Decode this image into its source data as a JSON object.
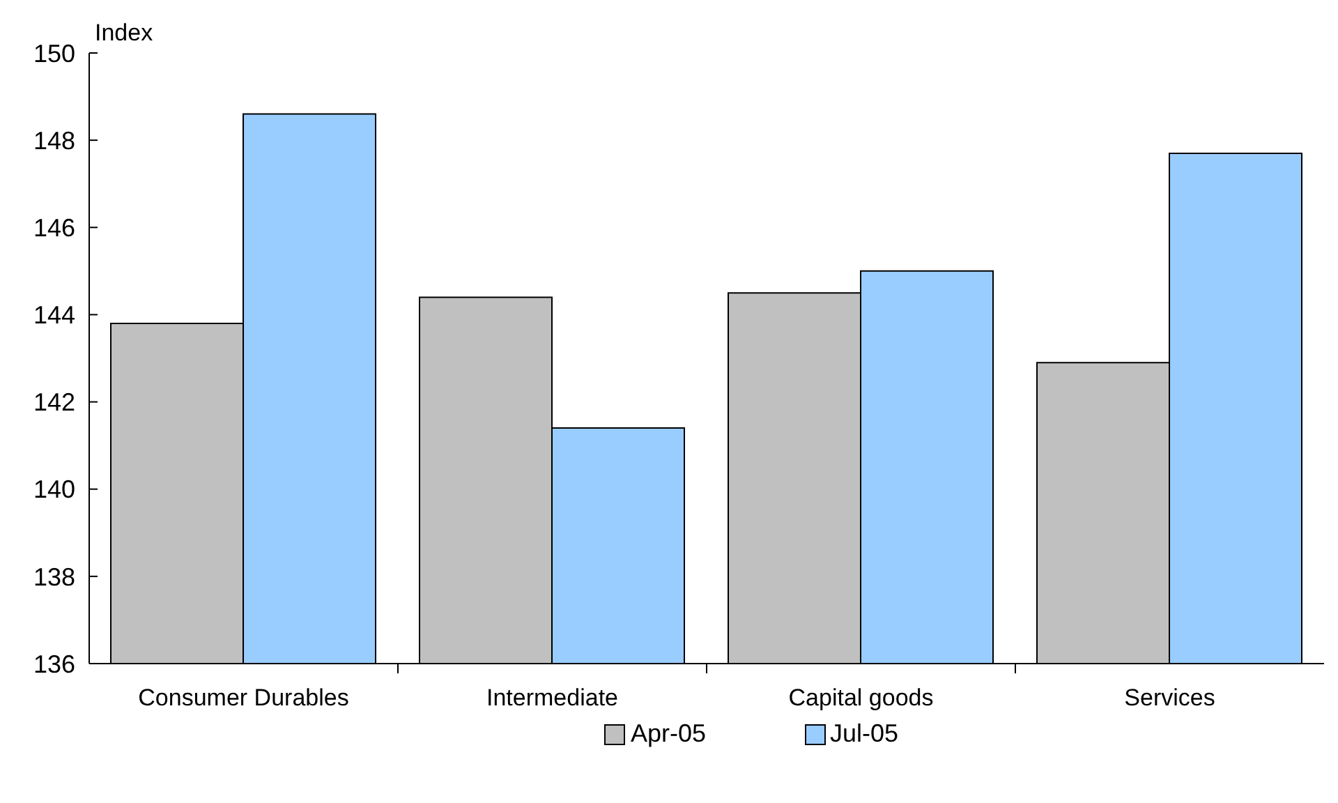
{
  "chart_data": {
    "type": "bar",
    "ylabel": "Index",
    "categories": [
      "Consumer Durables",
      "Intermediate",
      "Capital goods",
      "Services"
    ],
    "series": [
      {
        "name": "Apr-05",
        "color": "#c0c0c0",
        "values": [
          143.8,
          144.4,
          144.5,
          142.9
        ]
      },
      {
        "name": "Jul-05",
        "color": "#99ccff",
        "values": [
          148.6,
          141.4,
          145.0,
          147.7
        ]
      }
    ],
    "ylim": [
      136,
      150
    ],
    "yticks": [
      136,
      138,
      140,
      142,
      144,
      146,
      148,
      150
    ],
    "grid": false,
    "legend": "bottom"
  }
}
